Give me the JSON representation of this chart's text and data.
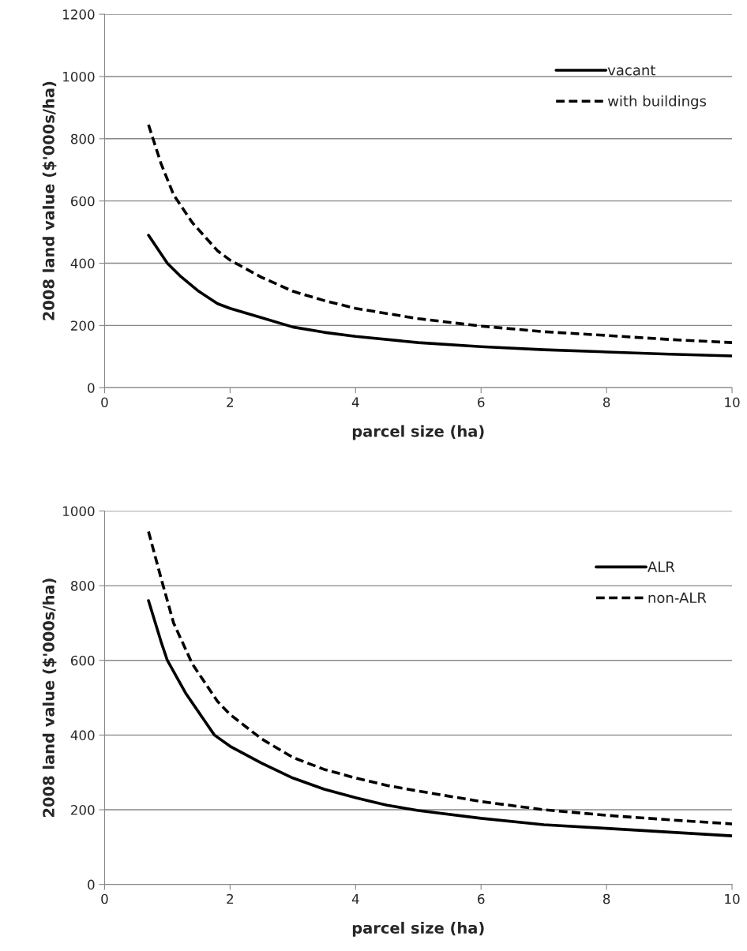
{
  "chart_data": [
    {
      "type": "line",
      "xlabel": "parcel size (ha)",
      "ylabel": "2008 land value ($'000s/ha)",
      "xlim": [
        0,
        10
      ],
      "ylim": [
        0,
        1200
      ],
      "xticks": [
        0,
        2,
        4,
        6,
        8,
        10
      ],
      "yticks": [
        0,
        200,
        400,
        600,
        800,
        1000,
        1200
      ],
      "grid": "y",
      "legend": "top right",
      "series": [
        {
          "name": "vacant",
          "color": "#000000",
          "line_style": "solid",
          "x": [
            0.7,
            1,
            1.2,
            1.5,
            1.8,
            2,
            2.5,
            3,
            3.5,
            4,
            5,
            6,
            7,
            8,
            9,
            10
          ],
          "values": [
            490,
            400,
            360,
            310,
            270,
            255,
            225,
            195,
            178,
            165,
            145,
            132,
            122,
            115,
            108,
            102
          ]
        },
        {
          "name": "with buildings",
          "color": "#000000",
          "line_style": "dashed",
          "x": [
            0.7,
            0.9,
            1.1,
            1.4,
            1.8,
            2,
            2.5,
            3,
            3.5,
            4,
            5,
            6,
            7,
            8,
            9,
            10
          ],
          "values": [
            845,
            720,
            620,
            530,
            440,
            410,
            355,
            310,
            280,
            255,
            222,
            198,
            180,
            168,
            155,
            145
          ]
        }
      ]
    },
    {
      "type": "line",
      "xlabel": "parcel size (ha)",
      "ylabel": "2008 land value ($'000s/ha)",
      "xlim": [
        0,
        10
      ],
      "ylim": [
        0,
        1000
      ],
      "xticks": [
        0,
        2,
        4,
        6,
        8,
        10
      ],
      "yticks": [
        0,
        200,
        400,
        600,
        800,
        1000
      ],
      "grid": "y",
      "legend": "top right",
      "series": [
        {
          "name": "ALR",
          "color": "#000000",
          "line_style": "solid",
          "x": [
            0.7,
            0.9,
            1,
            1.3,
            1.75,
            2,
            2.5,
            3,
            3.5,
            4,
            4.5,
            5,
            6,
            7,
            8,
            9,
            10
          ],
          "values": [
            760,
            650,
            600,
            510,
            400,
            370,
            325,
            285,
            255,
            232,
            212,
            198,
            177,
            160,
            150,
            140,
            130
          ]
        },
        {
          "name": "non-ALR",
          "color": "#000000",
          "line_style": "dashed",
          "x": [
            0.7,
            0.9,
            1.1,
            1.4,
            1.8,
            2,
            2.5,
            3,
            3.5,
            4,
            4.5,
            5,
            6,
            7,
            8,
            9,
            10
          ],
          "values": [
            945,
            820,
            700,
            590,
            490,
            455,
            390,
            340,
            308,
            285,
            265,
            250,
            222,
            200,
            185,
            173,
            162
          ]
        }
      ]
    }
  ]
}
